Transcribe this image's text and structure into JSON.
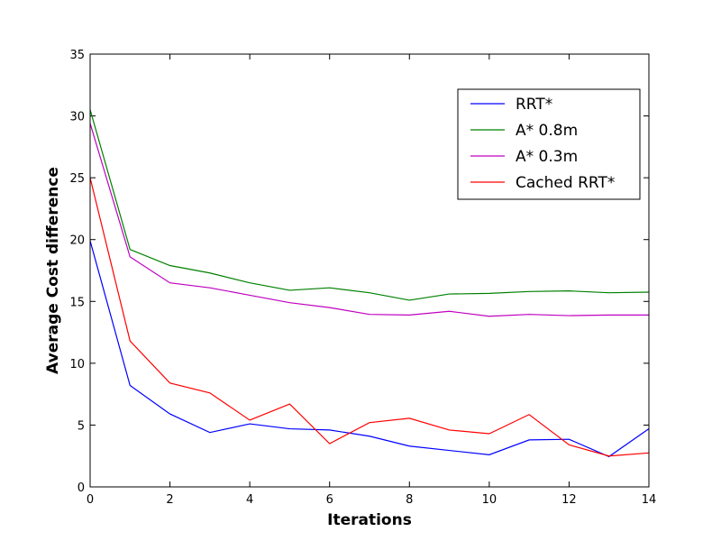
{
  "chart_data": {
    "type": "line",
    "title": "",
    "xlabel": "Iterations",
    "ylabel": "Average Cost difference",
    "xlim": [
      0,
      14
    ],
    "ylim": [
      0,
      35
    ],
    "xticks": [
      "0",
      "2",
      "4",
      "6",
      "8",
      "10",
      "12",
      "14"
    ],
    "yticks": [
      "0",
      "5",
      "10",
      "15",
      "20",
      "25",
      "30",
      "35"
    ],
    "grid": false,
    "legend_position": "top-right",
    "x": [
      0,
      1,
      2,
      3,
      4,
      5,
      6,
      7,
      8,
      9,
      10,
      11,
      12,
      13,
      14
    ],
    "series": [
      {
        "name": "RRT*",
        "color": "#0000ff",
        "values": [
          19.9,
          8.2,
          5.9,
          4.4,
          5.1,
          4.7,
          4.6,
          4.1,
          3.3,
          2.95,
          2.6,
          3.8,
          3.85,
          2.45,
          4.7
        ]
      },
      {
        "name": "A* 0.8m",
        "color": "#008000",
        "values": [
          30.5,
          19.2,
          17.9,
          17.3,
          16.5,
          15.9,
          16.1,
          15.7,
          15.1,
          15.6,
          15.65,
          15.8,
          15.85,
          15.7,
          15.75
        ]
      },
      {
        "name": "A* 0.3m",
        "color": "#bf00bf",
        "values": [
          29.4,
          18.6,
          16.5,
          16.1,
          15.5,
          14.9,
          14.5,
          13.95,
          13.9,
          14.2,
          13.8,
          13.95,
          13.85,
          13.9,
          13.9
        ]
      },
      {
        "name": "Cached RRT*",
        "color": "#ff0000",
        "values": [
          25.0,
          11.8,
          8.4,
          7.6,
          5.4,
          6.7,
          3.5,
          5.2,
          5.55,
          4.6,
          4.3,
          5.85,
          3.4,
          2.5,
          2.75
        ]
      }
    ]
  }
}
